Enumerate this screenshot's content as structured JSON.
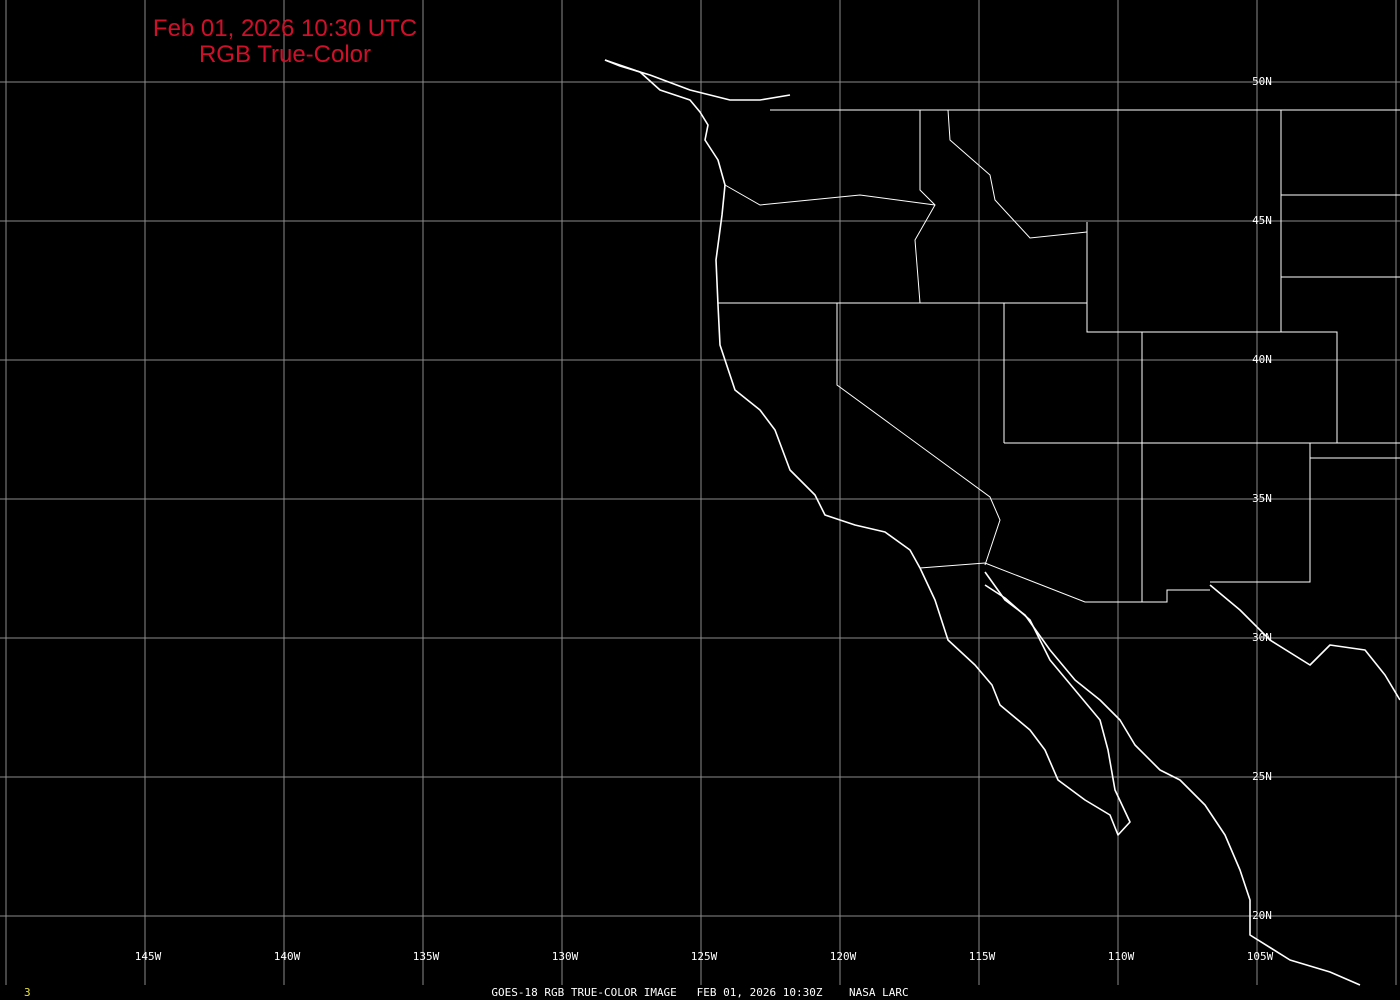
{
  "header": {
    "line1": "Feb 01, 2026 10:30 UTC",
    "line2": "RGB True-Color",
    "color": "#d0102a"
  },
  "grid": {
    "longitude_labels": [
      "145W",
      "140W",
      "135W",
      "130W",
      "125W",
      "120W",
      "115W",
      "110W",
      "105W"
    ],
    "latitude_labels": [
      "50N",
      "45N",
      "40N",
      "35N",
      "30N",
      "25N",
      "20N"
    ]
  },
  "footer": {
    "frame_number": "3",
    "caption": "GOES-18 RGB TRUE-COLOR IMAGE   FEB 01, 2026 10:30Z    NASA LARC"
  }
}
